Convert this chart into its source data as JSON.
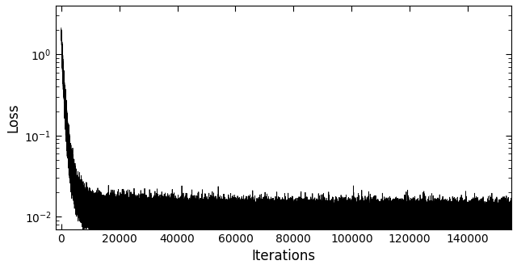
{
  "title": "",
  "xlabel": "Iterations",
  "ylabel": "Loss",
  "xlim": [
    -2000,
    155000
  ],
  "ylim_log": [
    0.007,
    4.0
  ],
  "total_iterations": 155000,
  "seed": 7,
  "line_color": "#000000",
  "line_width": 0.6,
  "background_color": "#ffffff",
  "tick_label_fontsize": 10,
  "axis_label_fontsize": 12,
  "xticks": [
    0,
    20000,
    40000,
    60000,
    80000,
    100000,
    120000,
    140000
  ],
  "xtick_labels": [
    "0",
    "20000",
    "40000",
    "60000",
    "80000",
    "100000",
    "120000",
    "140000"
  ]
}
